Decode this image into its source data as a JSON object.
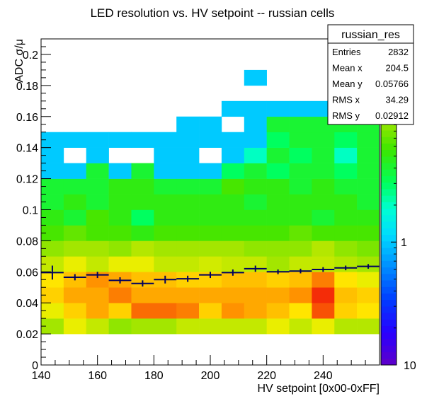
{
  "chart_data": {
    "type": "heatmap",
    "title": "LED resolution vs. HV setpoint -- russian cells",
    "xlabel": "HV setpoint [0x00-0xFF]",
    "ylabel": "ADC σ/μ",
    "xlim": [
      140,
      260
    ],
    "ylim": [
      0,
      0.21
    ],
    "x_ticks": [
      140,
      160,
      180,
      200,
      220,
      240
    ],
    "y_ticks": [
      0,
      0.02,
      0.04,
      0.06,
      0.08,
      0.1,
      0.12,
      0.14,
      0.16,
      0.18,
      0.2
    ],
    "x_bin_width": 8,
    "y_bin_width": 0.01,
    "z_scale": "log",
    "z_ticks": [
      "1",
      "10"
    ],
    "z_max_label": "10",
    "rows": [
      {
        "y": 0.005,
        "values": [
          0,
          0,
          0,
          0,
          0,
          0,
          0,
          0,
          0,
          0,
          0,
          0,
          0,
          0,
          0
        ]
      },
      {
        "y": 0.015,
        "values": [
          0,
          0,
          0,
          0,
          0,
          0,
          0,
          0,
          0,
          0,
          0,
          0,
          0,
          0,
          0
        ]
      },
      {
        "y": 0.025,
        "values": [
          10,
          15,
          12,
          9,
          10,
          10,
          12,
          12,
          12,
          12,
          15,
          12,
          15,
          11,
          11
        ]
      },
      {
        "y": 0.035,
        "values": [
          15,
          20,
          25,
          20,
          32,
          32,
          30,
          20,
          28,
          25,
          22,
          18,
          35,
          20,
          18
        ]
      },
      {
        "y": 0.045,
        "values": [
          20,
          25,
          25,
          30,
          25,
          25,
          25,
          25,
          25,
          25,
          25,
          28,
          40,
          22,
          20
        ]
      },
      {
        "y": 0.055,
        "values": [
          18,
          22,
          28,
          25,
          22,
          22,
          20,
          20,
          22,
          22,
          20,
          22,
          30,
          18,
          15
        ]
      },
      {
        "y": 0.065,
        "values": [
          12,
          15,
          12,
          15,
          15,
          12,
          12,
          13,
          12,
          12,
          10,
          12,
          12,
          11,
          10
        ]
      },
      {
        "y": 0.075,
        "values": [
          9,
          10,
          10,
          9,
          11,
          10,
          10,
          10,
          10,
          9,
          9,
          9,
          11,
          9,
          8
        ]
      },
      {
        "y": 0.085,
        "values": [
          6,
          7,
          6,
          6,
          5,
          6,
          6,
          6,
          6,
          6,
          6,
          7,
          6,
          6,
          6
        ]
      },
      {
        "y": 0.095,
        "values": [
          5,
          4,
          6,
          5,
          3,
          5,
          5,
          5,
          5,
          5,
          5,
          5,
          4,
          5,
          5
        ]
      },
      {
        "y": 0.105,
        "values": [
          4,
          5,
          4,
          5,
          5,
          5,
          5,
          5,
          5,
          4,
          5,
          5,
          5,
          5,
          4
        ]
      },
      {
        "y": 0.115,
        "values": [
          4,
          4,
          4,
          5,
          5,
          4,
          4,
          4,
          6,
          5,
          5,
          4,
          5,
          4,
          4
        ]
      },
      {
        "y": 0.125,
        "values": [
          1,
          1,
          4,
          1,
          4,
          1,
          1,
          1,
          3,
          4,
          3,
          4,
          4,
          3,
          4
        ]
      },
      {
        "y": 0.135,
        "values": [
          1,
          0,
          1,
          0,
          0,
          1,
          1,
          0,
          1,
          2,
          4,
          3,
          4,
          2,
          4
        ]
      },
      {
        "y": 0.145,
        "values": [
          1,
          1,
          1,
          1,
          1,
          1,
          1,
          1,
          1,
          1,
          3,
          4,
          4,
          3,
          4
        ]
      },
      {
        "y": 0.155,
        "values": [
          0,
          0,
          0,
          0,
          0,
          0,
          1,
          1,
          0,
          1,
          4,
          4,
          4,
          4,
          4
        ]
      },
      {
        "y": 0.165,
        "values": [
          0,
          0,
          0,
          0,
          0,
          0,
          0,
          0,
          1,
          1,
          1,
          1,
          1,
          1,
          1
        ]
      },
      {
        "y": 0.175,
        "values": [
          0,
          0,
          0,
          0,
          0,
          0,
          0,
          0,
          0,
          0,
          0,
          0,
          0,
          0,
          0
        ]
      },
      {
        "y": 0.185,
        "values": [
          0,
          0,
          0,
          0,
          0,
          0,
          0,
          0,
          0,
          1,
          0,
          0,
          0,
          0,
          0
        ]
      }
    ],
    "profile": {
      "x": [
        144,
        152,
        160,
        168,
        176,
        184,
        192,
        200,
        208,
        216,
        224,
        232,
        240,
        248,
        256
      ],
      "y": [
        0.0595,
        0.0565,
        0.058,
        0.0545,
        0.0525,
        0.055,
        0.0555,
        0.058,
        0.0595,
        0.062,
        0.06,
        0.0605,
        0.0615,
        0.0625,
        0.0635
      ],
      "err": [
        0.0045,
        0.002,
        0.002,
        0.002,
        0.002,
        0.0025,
        0.002,
        0.002,
        0.002,
        0.002,
        0.0015,
        0.0015,
        0.0015,
        0.0015,
        0.0015
      ]
    },
    "stats_box": {
      "title": "russian_res",
      "entries": [
        {
          "label": "Entries",
          "value": "2832"
        },
        {
          "label": "Mean x",
          "value": "204.5"
        },
        {
          "label": "Mean y",
          "value": "0.05766"
        },
        {
          "label": "RMS x",
          "value": "34.29"
        },
        {
          "label": "RMS y",
          "value": "0.02912"
        }
      ]
    }
  }
}
